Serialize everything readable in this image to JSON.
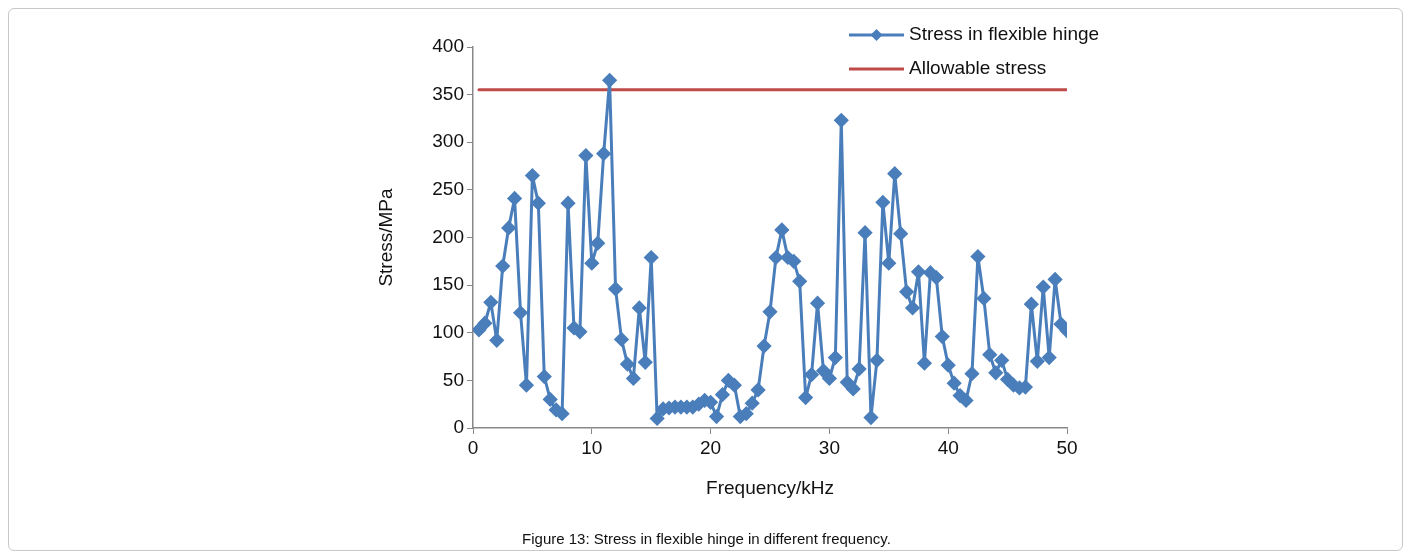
{
  "chart_data": {
    "type": "line",
    "xlabel": "Frequency/kHz",
    "ylabel": "Stress/MPa",
    "xlim": [
      0,
      50
    ],
    "xticks": [
      0,
      10,
      20,
      30,
      40,
      50
    ],
    "ylim": [
      0,
      400
    ],
    "yticks": [
      0,
      50,
      100,
      150,
      200,
      250,
      300,
      350,
      400
    ],
    "grid": false,
    "legend": "top right",
    "marker": "diamond",
    "line_style": "solid",
    "series": [
      {
        "name": "Stress in flexible hinge",
        "color": "#4a7ebb",
        "x": [
          0.5,
          1,
          1.5,
          2,
          2.5,
          3,
          3.5,
          4,
          4.5,
          5,
          5.5,
          6,
          6.5,
          7,
          7.5,
          8,
          8.5,
          9,
          9.5,
          10,
          10.5,
          11,
          11.5,
          12,
          12.5,
          13,
          13.5,
          14,
          14.5,
          15,
          15.5,
          16,
          16.5,
          17,
          17.5,
          18,
          18.5,
          19,
          19.5,
          20,
          20.5,
          21,
          21.5,
          22,
          22.5,
          23,
          23.5,
          24,
          24.5,
          25,
          25.5,
          26,
          26.5,
          27,
          27.5,
          28,
          28.5,
          29,
          29.5,
          30,
          30.5,
          31,
          31.5,
          32,
          32.5,
          33,
          33.5,
          34,
          34.5,
          35,
          35.5,
          36,
          36.5,
          37,
          37.5,
          38,
          38.5,
          39,
          39.5,
          40,
          40.5,
          41,
          41.5,
          42,
          42.5,
          43,
          43.5,
          44,
          44.5,
          45,
          45.5,
          46,
          46.5,
          47,
          47.5,
          48,
          48.5,
          49,
          49.5,
          50
        ],
        "values": [
          103,
          110,
          132,
          92,
          170,
          210,
          241,
          121,
          45,
          265,
          236,
          54,
          30,
          19,
          15,
          236,
          105,
          101,
          286,
          173,
          194,
          288,
          365,
          146,
          93,
          67,
          52,
          126,
          69,
          179,
          10,
          20,
          21,
          22,
          22,
          22,
          22,
          25,
          29,
          27,
          12,
          35,
          50,
          45,
          12,
          15,
          26,
          40,
          86,
          122,
          179,
          208,
          179,
          175,
          154,
          32,
          56,
          131,
          60,
          52,
          74,
          323,
          48,
          41,
          62,
          205,
          11,
          71,
          237,
          173,
          267,
          204,
          143,
          126,
          164,
          68,
          163,
          158,
          96,
          66,
          47,
          34,
          29,
          57,
          180,
          136,
          77,
          58,
          71,
          51,
          45,
          42,
          43,
          130,
          70,
          148,
          74,
          156,
          109,
          102
        ]
      },
      {
        "name": "Allowable stress",
        "color": "#be4b48",
        "marker": "none",
        "x": [
          0.5,
          50
        ],
        "values": [
          355,
          355
        ]
      }
    ],
    "annotations": [
      "Figure 13: Stress in flexible hinge in different frequency."
    ]
  }
}
